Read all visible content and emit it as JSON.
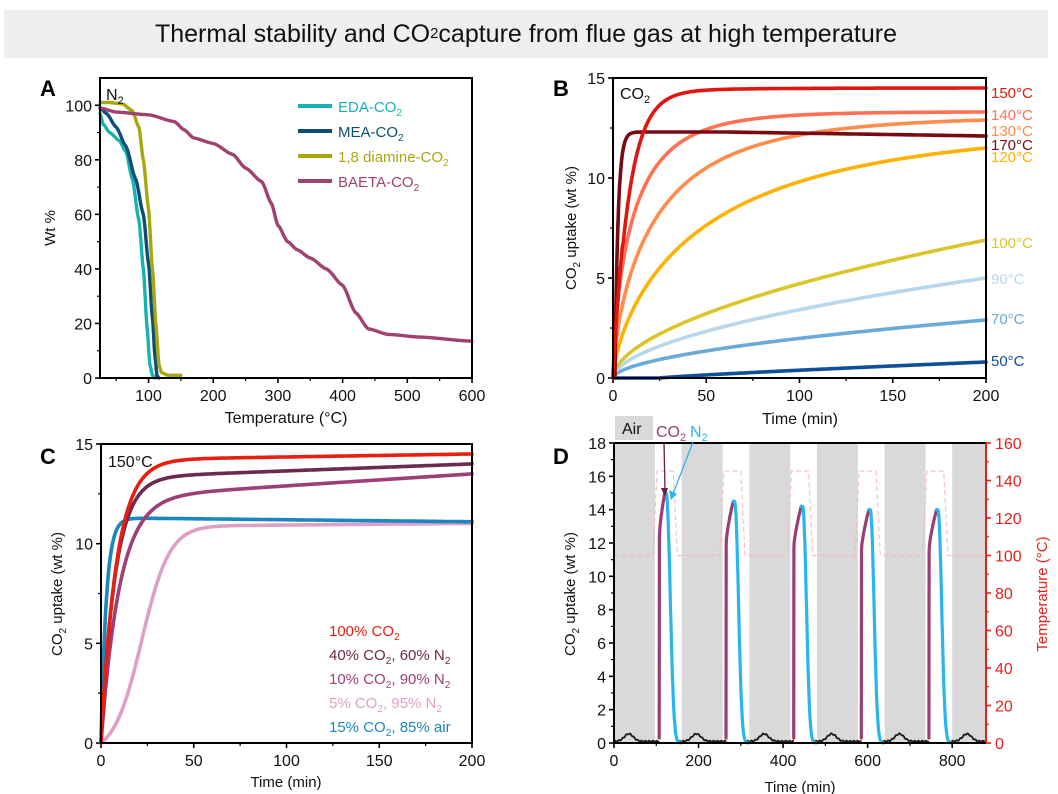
{
  "page_title": {
    "pre": "Thermal stability and CO",
    "sub": "2",
    "post": " capture from flue gas at high temperature"
  },
  "chart_data": [
    {
      "panel": "A",
      "type": "line",
      "annotation": {
        "text": "N",
        "sub": "2"
      },
      "xlabel": "Temperature (°C)",
      "ylabel": "Wt %",
      "xlim": [
        25,
        600
      ],
      "ylim": [
        0,
        110
      ],
      "xticks": [
        100,
        200,
        300,
        400,
        500,
        600
      ],
      "yticks": [
        0,
        20,
        40,
        60,
        80,
        100
      ],
      "legend_position": "top-right",
      "series": [
        {
          "name": "EDA-CO",
          "sub": "2",
          "color": "#17b3b3",
          "x": [
            25,
            30,
            40,
            55,
            65,
            75,
            85,
            92,
            98,
            102,
            106,
            110
          ],
          "y": [
            97,
            93,
            90,
            87,
            83,
            73,
            58,
            40,
            18,
            5,
            1,
            0
          ]
        },
        {
          "name": "MEA-CO",
          "sub": "2",
          "color": "#0e4e75",
          "x": [
            25,
            35,
            50,
            65,
            80,
            92,
            100,
            106,
            110,
            113,
            116
          ],
          "y": [
            99,
            97,
            92,
            85,
            73,
            60,
            42,
            22,
            8,
            1,
            0
          ]
        },
        {
          "name": "1,8 diamine-CO",
          "sub": "2",
          "color": "#a8a80e",
          "x": [
            25,
            40,
            60,
            75,
            85,
            92,
            100,
            106,
            112,
            116,
            120,
            130,
            150
          ],
          "y": [
            101,
            101,
            100.5,
            98,
            92,
            80,
            62,
            40,
            18,
            5,
            2,
            1,
            1
          ]
        },
        {
          "name": "BAETA-CO",
          "sub": "2",
          "color": "#a0426f",
          "x": [
            25,
            50,
            100,
            140,
            155,
            170,
            200,
            230,
            250,
            275,
            290,
            300,
            315,
            330,
            350,
            375,
            400,
            420,
            440,
            470,
            520,
            600
          ],
          "y": [
            99,
            97.5,
            96.5,
            94,
            91,
            88,
            86,
            82,
            77,
            72,
            64,
            56,
            50,
            47,
            44,
            40,
            34,
            24,
            18,
            16,
            15,
            13.5
          ]
        }
      ]
    },
    {
      "panel": "B",
      "type": "line",
      "annotation": {
        "text": "CO",
        "sub": "2"
      },
      "xlabel": "Time (min)",
      "ylabel": "CO2 uptake (wt %)",
      "xlim": [
        0,
        200
      ],
      "ylim": [
        0,
        15
      ],
      "xticks": [
        0,
        50,
        100,
        150,
        200
      ],
      "yticks": [
        0,
        5,
        10,
        15
      ],
      "legend_position": "right-outside",
      "series": [
        {
          "name": "150°C",
          "color": "#e0170e",
          "plateau": 14.5,
          "model": "exp",
          "k": 0.12,
          "end": 14.5,
          "label_y": 14.3
        },
        {
          "name": "140°C",
          "color": "#ff7055",
          "model": "sat",
          "end": 13.3,
          "tau": 12,
          "label_y": 13.2
        },
        {
          "name": "130°C",
          "color": "#ff8c4a",
          "model": "sat",
          "end": 12.9,
          "tau": 25,
          "label_y": 12.4
        },
        {
          "name": "170°C",
          "color": "#7a0a12",
          "model": "exp_decay",
          "end": 12.1,
          "peak": 12.3,
          "label_y": 11.7
        },
        {
          "name": "120°C",
          "color": "#ffb000",
          "model": "sat",
          "end": 11.5,
          "tau": 55,
          "label_y": 11.1
        },
        {
          "name": "100°C",
          "color": "#dcc52a",
          "model": "pow",
          "end": 6.9,
          "label_y": 6.8
        },
        {
          "name": "90°C",
          "color": "#b8d7ec",
          "model": "pow",
          "end": 5.0,
          "label_y": 5.0
        },
        {
          "name": "70°C",
          "color": "#6aaad6",
          "model": "pow",
          "end": 2.9,
          "label_y": 3.0
        },
        {
          "name": "50°C",
          "color": "#0f4f9a",
          "model": "lin",
          "start_x": 25,
          "end": 0.8,
          "label_y": 0.9
        }
      ]
    },
    {
      "panel": "C",
      "type": "line",
      "annotation": {
        "text": "150°C"
      },
      "xlabel": "Time (min)",
      "ylabel": "CO2 uptake (wt %)",
      "xlim": [
        0,
        200
      ],
      "ylim": [
        0,
        15
      ],
      "xticks": [
        0,
        50,
        100,
        150,
        200
      ],
      "yticks": [
        0,
        5,
        10,
        15
      ],
      "legend_position": "bottom-right",
      "series": [
        {
          "name": "100% CO",
          "sub": "2",
          "color": "#e81e0e",
          "tail": "",
          "plateau": 14.2,
          "end": 14.5,
          "k": 0.12
        },
        {
          "name": "40% CO",
          "sub": "2",
          "color": "#6b2a4e",
          "tail": ", 60% N",
          "tail_sub": "2",
          "plateau": 13.3,
          "end": 14.0,
          "k": 0.13
        },
        {
          "name": "10% CO",
          "sub": "2",
          "color": "#9e3f78",
          "tail": ", 90% N",
          "tail_sub": "2",
          "plateau": 12.3,
          "end": 13.5,
          "k": 0.1
        },
        {
          "name": "5% CO",
          "sub": "2",
          "color": "#dea0c6",
          "tail": ", 95% N",
          "tail_sub": "2",
          "plateau": 11.5,
          "end": 11.6,
          "sigmoid": true
        },
        {
          "name": "15% CO",
          "sub": "2",
          "color": "#1b87c0",
          "tail": ", 85% air",
          "plateau": 11.3,
          "end": 11.1,
          "k": 0.35
        }
      ]
    },
    {
      "panel": "D",
      "type": "line",
      "xlabel": "Time (min)",
      "ylabel": "CO2 uptake (wt %)",
      "y2label": "Temperature (°C)",
      "xlim": [
        0,
        880
      ],
      "ylim": [
        0,
        18
      ],
      "y2lim": [
        0,
        160
      ],
      "xticks": [
        0,
        200,
        400,
        600,
        800
      ],
      "yticks": [
        0,
        2,
        4,
        6,
        8,
        10,
        12,
        14,
        16,
        18
      ],
      "y2ticks": [
        0,
        20,
        40,
        60,
        80,
        100,
        120,
        140,
        160
      ],
      "legend": {
        "air": "Air",
        "co2": "CO",
        "co2_sub": "2",
        "n2": "N",
        "n2_sub": "2"
      },
      "air_bands": [
        [
          0,
          97
        ],
        [
          160,
          257
        ],
        [
          320,
          417
        ],
        [
          480,
          577
        ],
        [
          640,
          737
        ],
        [
          800,
          880
        ]
      ],
      "cycles": [
        {
          "co2_start": 107,
          "co2_end": 120,
          "peak": 15.0,
          "n2_end": 155
        },
        {
          "co2_start": 265,
          "co2_end": 282,
          "peak": 14.5,
          "n2_end": 315
        },
        {
          "co2_start": 425,
          "co2_end": 443,
          "peak": 14.2,
          "n2_end": 475
        },
        {
          "co2_start": 585,
          "co2_end": 603,
          "peak": 14.0,
          "n2_end": 635
        },
        {
          "co2_start": 745,
          "co2_end": 763,
          "peak": 14.0,
          "n2_end": 795
        }
      ],
      "colors": {
        "co2": "#9a3d73",
        "n2": "#29b5f0",
        "air": "#1a1a1a",
        "temp": "#e8201a",
        "band": "#d9d9d9"
      }
    }
  ]
}
